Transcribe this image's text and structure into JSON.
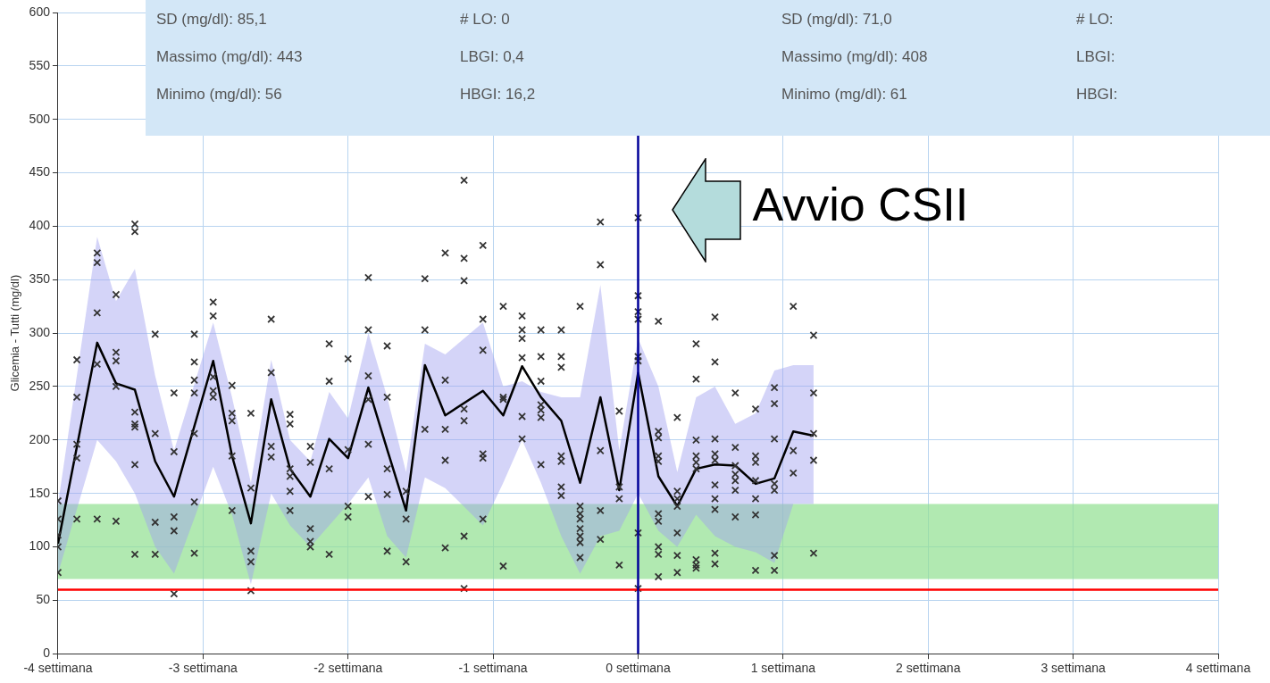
{
  "chart_data": {
    "type": "line",
    "ylabel": "Glicemia - Tutti (mg/dl)",
    "xlim": [
      -4,
      4
    ],
    "xticks": [
      {
        "value": -4,
        "label": "-4 settimana"
      },
      {
        "value": -3,
        "label": "-3 settimana"
      },
      {
        "value": -2,
        "label": "-2 settimana"
      },
      {
        "value": -1,
        "label": "-1 settimana"
      },
      {
        "value": 0,
        "label": "0 settimana"
      },
      {
        "value": 1,
        "label": "1 settimana"
      },
      {
        "value": 2,
        "label": "2 settimana"
      },
      {
        "value": 3,
        "label": "3 settimana"
      },
      {
        "value": 4,
        "label": "4 settimana"
      }
    ],
    "ylim": [
      0,
      600
    ],
    "yticks": [
      0,
      50,
      100,
      150,
      200,
      250,
      300,
      350,
      400,
      450,
      500,
      550,
      600
    ],
    "grid": true,
    "legend": false,
    "series": [
      {
        "color": "#000000",
        "marker": "none",
        "x": [
          -4,
          -3.73,
          -3.6,
          -3.47,
          -3.33,
          -3.2,
          -2.93,
          -2.8,
          -2.67,
          -2.53,
          -2.4,
          -2.26,
          -2.13,
          -2,
          -1.86,
          -1.73,
          -1.6,
          -1.47,
          -1.33,
          -1.07,
          -0.93,
          -0.8,
          -0.67,
          -0.53,
          -0.4,
          -0.26,
          -0.13,
          0,
          0.14,
          0.27,
          0.4,
          0.53,
          0.67,
          0.81,
          0.94,
          1.07,
          1.21
        ],
        "values": [
          103,
          291,
          253,
          247,
          180,
          147,
          274,
          185,
          122,
          238,
          173,
          147,
          201,
          183,
          249,
          191,
          134,
          270,
          223,
          246,
          223,
          269,
          240,
          218,
          160,
          240,
          153,
          263,
          166,
          138,
          173,
          177,
          176,
          159,
          164,
          208,
          204
        ],
        "upper": [
          140,
          390,
          330,
          360,
          260,
          190,
          310,
          240,
          160,
          275,
          200,
          180,
          245,
          220,
          300,
          240,
          170,
          290,
          280,
          310,
          250,
          255,
          245,
          240,
          240,
          345,
          190,
          295,
          250,
          170,
          240,
          250,
          215,
          225,
          265,
          270,
          270
        ],
        "lower": [
          75,
          200,
          180,
          150,
          100,
          75,
          175,
          130,
          65,
          150,
          120,
          100,
          120,
          140,
          165,
          110,
          90,
          165,
          155,
          120,
          160,
          200,
          160,
          110,
          75,
          110,
          115,
          150,
          115,
          100,
          130,
          110,
          100,
          95,
          85,
          140,
          140
        ]
      },
      {
        "type": "scatter",
        "color": "#333333",
        "marker": "cross",
        "x": [
          -4,
          -4,
          -4,
          -4,
          -4,
          -3.87,
          -3.87,
          -3.87,
          -3.87,
          -3.87,
          -3.73,
          -3.73,
          -3.73,
          -3.73,
          -3.73,
          -3.6,
          -3.6,
          -3.6,
          -3.6,
          -3.6,
          -3.47,
          -3.47,
          -3.47,
          -3.47,
          -3.47,
          -3.47,
          -3.47,
          -3.33,
          -3.33,
          -3.33,
          -3.33,
          -3.2,
          -3.2,
          -3.2,
          -3.2,
          -3.2,
          -3.06,
          -3.06,
          -3.06,
          -3.06,
          -3.06,
          -3.06,
          -3.06,
          -2.93,
          -2.93,
          -2.93,
          -2.93,
          -2.93,
          -2.8,
          -2.8,
          -2.8,
          -2.8,
          -2.8,
          -2.67,
          -2.67,
          -2.67,
          -2.67,
          -2.67,
          -2.53,
          -2.53,
          -2.53,
          -2.53,
          -2.4,
          -2.4,
          -2.4,
          -2.4,
          -2.4,
          -2.4,
          -2.26,
          -2.26,
          -2.26,
          -2.26,
          -2.26,
          -2.13,
          -2.13,
          -2.13,
          -2.13,
          -2,
          -2,
          -2,
          -2,
          -1.86,
          -1.86,
          -1.86,
          -1.86,
          -1.86,
          -1.86,
          -1.73,
          -1.73,
          -1.73,
          -1.73,
          -1.73,
          -1.6,
          -1.6,
          -1.6,
          -1.47,
          -1.47,
          -1.47,
          -1.33,
          -1.33,
          -1.33,
          -1.33,
          -1.33,
          -1.2,
          -1.2,
          -1.2,
          -1.2,
          -1.2,
          -1.2,
          -1.2,
          -1.07,
          -1.07,
          -1.07,
          -1.07,
          -1.07,
          -1.07,
          -0.93,
          -0.93,
          -0.93,
          -0.93,
          -0.8,
          -0.8,
          -0.8,
          -0.8,
          -0.8,
          -0.8,
          -0.67,
          -0.67,
          -0.67,
          -0.67,
          -0.67,
          -0.67,
          -0.67,
          -0.53,
          -0.53,
          -0.53,
          -0.53,
          -0.53,
          -0.53,
          -0.53,
          -0.4,
          -0.4,
          -0.4,
          -0.4,
          -0.4,
          -0.4,
          -0.4,
          -0.4,
          -0.26,
          -0.26,
          -0.26,
          -0.26,
          -0.26,
          -0.13,
          -0.13,
          -0.13,
          -0.13,
          0,
          0,
          0,
          0,
          0,
          0,
          0,
          0,
          0.14,
          0.14,
          0.14,
          0.14,
          0.14,
          0.14,
          0.14,
          0.14,
          0.14,
          0.14,
          0.27,
          0.27,
          0.27,
          0.27,
          0.27,
          0.27,
          0.27,
          0.4,
          0.4,
          0.4,
          0.4,
          0.4,
          0.4,
          0.4,
          0.4,
          0.4,
          0.53,
          0.53,
          0.53,
          0.53,
          0.53,
          0.53,
          0.53,
          0.53,
          0.53,
          0.53,
          0.67,
          0.67,
          0.67,
          0.67,
          0.67,
          0.67,
          0.67,
          0.81,
          0.81,
          0.81,
          0.81,
          0.81,
          0.81,
          0.81,
          0.94,
          0.94,
          0.94,
          0.94,
          0.94,
          0.94,
          0.94,
          1.07,
          1.07,
          1.07,
          1.21,
          1.21,
          1.21,
          1.21,
          1.21
        ],
        "values": [
          143,
          126,
          111,
          100,
          76,
          275,
          240,
          196,
          183,
          126,
          375,
          366,
          319,
          271,
          126,
          336,
          282,
          274,
          250,
          124,
          402,
          395,
          226,
          215,
          212,
          177,
          93,
          299,
          206,
          123,
          93,
          244,
          189,
          128,
          115,
          56,
          299,
          273,
          256,
          244,
          206,
          142,
          94,
          329,
          316,
          259,
          246,
          240,
          251,
          225,
          218,
          185,
          134,
          225,
          155,
          96,
          86,
          59,
          313,
          263,
          194,
          184,
          224,
          215,
          173,
          166,
          152,
          134,
          194,
          179,
          117,
          105,
          100,
          290,
          255,
          173,
          93,
          276,
          191,
          138,
          128,
          352,
          303,
          260,
          238,
          196,
          147,
          288,
          240,
          173,
          149,
          96,
          152,
          126,
          86,
          351,
          303,
          210,
          375,
          256,
          210,
          181,
          99,
          443,
          370,
          349,
          229,
          218,
          110,
          61,
          382,
          313,
          284,
          187,
          183,
          126,
          325,
          240,
          238,
          82,
          316,
          303,
          295,
          277,
          222,
          201,
          303,
          278,
          255,
          233,
          228,
          221,
          177,
          303,
          278,
          268,
          185,
          180,
          156,
          148,
          325,
          138,
          131,
          126,
          117,
          110,
          104,
          90,
          404,
          364,
          190,
          134,
          107,
          227,
          156,
          145,
          83,
          408,
          335,
          320,
          313,
          278,
          274,
          113,
          61,
          311,
          208,
          202,
          185,
          180,
          131,
          124,
          100,
          93,
          72,
          221,
          152,
          145,
          138,
          113,
          92,
          76,
          290,
          257,
          200,
          185,
          179,
          173,
          88,
          83,
          80,
          315,
          273,
          201,
          187,
          181,
          158,
          145,
          135,
          94,
          84,
          244,
          193,
          176,
          168,
          162,
          153,
          128,
          229,
          185,
          179,
          162,
          145,
          130,
          78,
          249,
          234,
          201,
          159,
          153,
          92,
          78,
          325,
          190,
          169,
          298,
          244,
          206,
          181,
          94
        ]
      }
    ],
    "bands": [
      {
        "axis": "y",
        "from": 70,
        "to": 140,
        "color": "#90e090"
      }
    ],
    "ref_lines": [
      {
        "axis": "y",
        "value": 60,
        "color": "#ff0000"
      },
      {
        "axis": "x",
        "value": 0,
        "color": "#000099"
      }
    ],
    "annotations": [
      {
        "text": "Avvio CSII",
        "x": 0,
        "y": 415
      },
      "SD (mg/dl): 85,1",
      "# LO: 0",
      "SD (mg/dl): 71,0",
      "# LO:",
      "Massimo (mg/dl): 443",
      "LBGI: 0,4",
      "Massimo (mg/dl): 408",
      "LBGI:",
      "Minimo (mg/dl): 56",
      "HBGI: 16,2",
      "Minimo (mg/dl): 61",
      "HBGI:"
    ]
  }
}
